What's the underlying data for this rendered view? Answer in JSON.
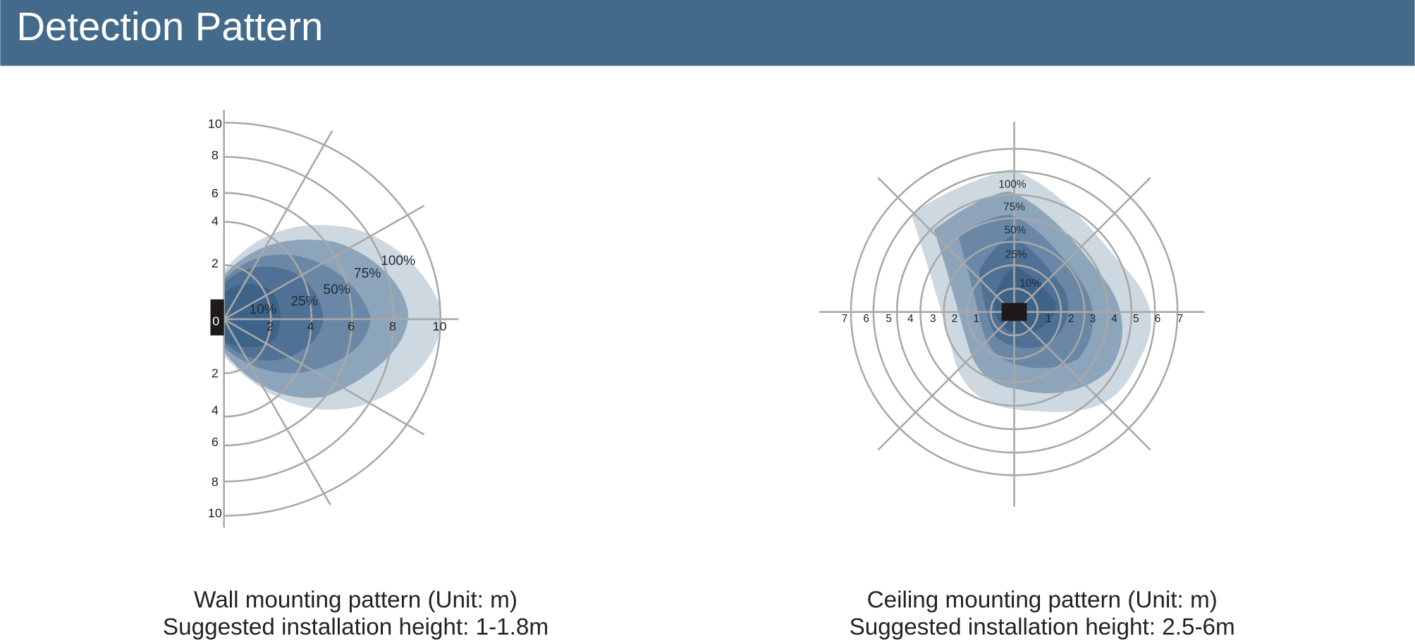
{
  "header": {
    "title": "Detection Pattern"
  },
  "diagrams": [
    {
      "x_labels": [
        2,
        4,
        6,
        8,
        10
      ],
      "y_labels_top": [
        10,
        8,
        6,
        4,
        2
      ],
      "origin_label": 0,
      "y_labels_bottom": [
        2,
        4,
        6,
        8,
        10
      ],
      "zone_labels": [
        "100%",
        "75%",
        "50%",
        "25%",
        "10%"
      ],
      "caption": [
        "Wall mounting pattern (Unit: m)",
        "Suggested installation height: 1-1.8m"
      ]
    },
    {
      "x_labels_left": [
        7,
        6,
        5,
        4,
        3,
        2,
        1
      ],
      "x_labels_right": [
        1,
        2,
        3,
        4,
        5,
        6,
        7
      ],
      "zone_labels": [
        "100%",
        "75%",
        "50%",
        "25%",
        "10%"
      ],
      "caption": [
        "Ceiling  mounting pattern (Unit: m)",
        "Suggested installation height: 2.5-6m"
      ]
    }
  ]
}
